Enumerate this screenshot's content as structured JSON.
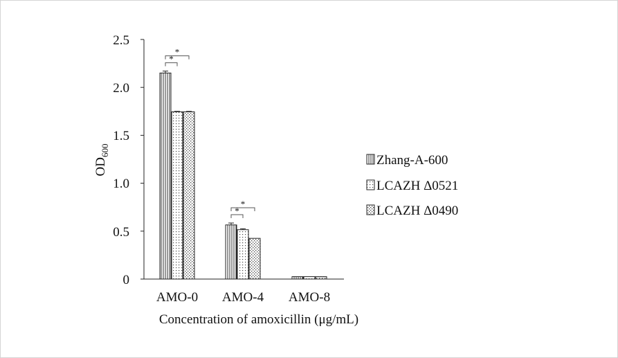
{
  "chart_data": {
    "type": "bar",
    "categories": [
      "AMO-0",
      "AMO-4",
      "AMO-8"
    ],
    "series": [
      {
        "name": "Zhang-A-600",
        "values": [
          2.15,
          0.565,
          0.025
        ],
        "errors": [
          0.02,
          0.02,
          0.0
        ],
        "pattern": "vertical-lines"
      },
      {
        "name": "LCAZH Δ0521",
        "values": [
          1.745,
          0.515,
          0.025
        ],
        "errors": [
          0.005,
          0.01,
          0.0
        ],
        "pattern": "dots"
      },
      {
        "name": "LCAZH Δ0490",
        "values": [
          1.745,
          0.425,
          0.025
        ],
        "errors": [
          0.005,
          0.0,
          0.0
        ],
        "pattern": "crosshatch"
      }
    ],
    "ylabel_main": "OD",
    "ylabel_sub": "600",
    "xlabel": "Concentration of amoxicillin (μg/mL)",
    "ylim": [
      0,
      2.5
    ],
    "yticks": [
      "0",
      "0.5",
      "1.0",
      "1.5",
      "2.0",
      "2.5"
    ],
    "yticks_values": [
      0,
      0.5,
      1.0,
      1.5,
      2.0,
      2.5
    ],
    "significance": [
      {
        "category": "AMO-0",
        "from_series": 0,
        "to_series": 1,
        "label": "*"
      },
      {
        "category": "AMO-0",
        "from_series": 0,
        "to_series": 2,
        "label": "*"
      },
      {
        "category": "AMO-4",
        "from_series": 0,
        "to_series": 1,
        "label": "*"
      },
      {
        "category": "AMO-4",
        "from_series": 0,
        "to_series": 2,
        "label": "*"
      }
    ],
    "grid": false,
    "legend_position": "right"
  }
}
